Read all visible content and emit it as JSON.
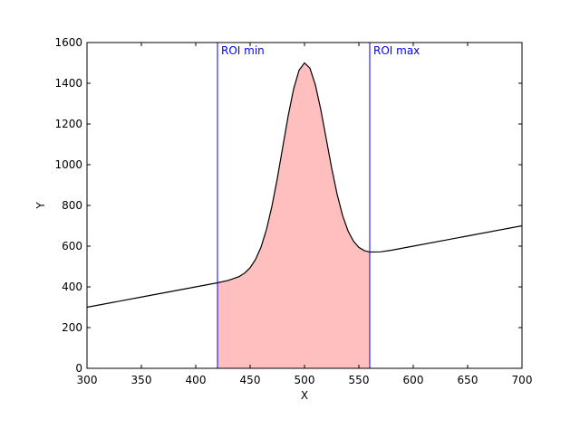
{
  "chart_data": {
    "type": "line",
    "title": "",
    "xlabel": "X",
    "ylabel": "Y",
    "xlim": [
      300,
      700
    ],
    "ylim": [
      0,
      1600
    ],
    "xticks": [
      300,
      350,
      400,
      450,
      500,
      550,
      600,
      650,
      700
    ],
    "yticks": [
      0,
      200,
      400,
      600,
      800,
      1000,
      1200,
      1400,
      1600
    ],
    "grid": false,
    "x": [
      300,
      350,
      400,
      420,
      430,
      440,
      445,
      450,
      455,
      460,
      465,
      470,
      475,
      480,
      485,
      490,
      495,
      500,
      505,
      510,
      515,
      520,
      525,
      530,
      535,
      540,
      545,
      550,
      555,
      560,
      570,
      580,
      600,
      650,
      700
    ],
    "y": [
      300,
      350,
      400,
      420,
      432,
      451,
      468,
      494,
      535,
      595,
      681,
      795,
      933,
      1087,
      1240,
      1372,
      1464,
      1500,
      1474,
      1392,
      1270,
      1127,
      983,
      855,
      751,
      675,
      625,
      594,
      578,
      571,
      572,
      580,
      600,
      650,
      700
    ],
    "line_color": "#000000",
    "roi": {
      "min": 420,
      "max": 560,
      "min_label": "ROI min",
      "max_label": "ROI max",
      "line_color": "#0000ff",
      "fill_color": "#ffbfbf"
    }
  }
}
